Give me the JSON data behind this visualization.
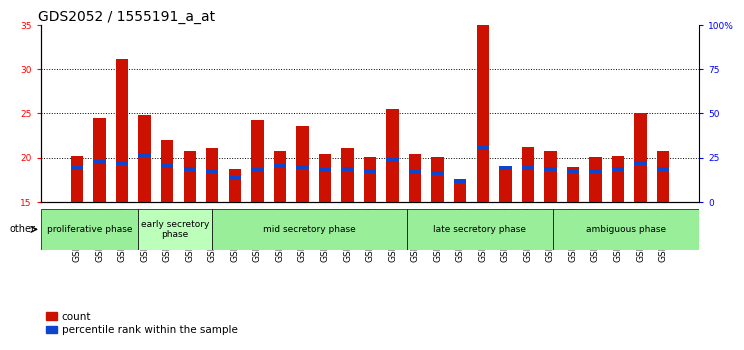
{
  "title": "GDS2052 / 1555191_a_at",
  "categories": [
    "GSM109814",
    "GSM109815",
    "GSM109816",
    "GSM109817",
    "GSM109820",
    "GSM109821",
    "GSM109822",
    "GSM109824",
    "GSM109825",
    "GSM109826",
    "GSM109827",
    "GSM109828",
    "GSM109829",
    "GSM109830",
    "GSM109831",
    "GSM109834",
    "GSM109835",
    "GSM109836",
    "GSM109837",
    "GSM109838",
    "GSM109839",
    "GSM109818",
    "GSM109819",
    "GSM109823",
    "GSM109832",
    "GSM109833",
    "GSM109840"
  ],
  "count_values": [
    20.2,
    24.5,
    31.2,
    24.8,
    22.0,
    20.8,
    21.1,
    18.7,
    24.3,
    20.8,
    23.6,
    20.4,
    21.1,
    20.1,
    25.5,
    20.4,
    20.1,
    17.1,
    35.0,
    18.6,
    21.2,
    20.7,
    19.0,
    20.1,
    20.2,
    25.0,
    20.7
  ],
  "percentile_values": [
    18.6,
    19.3,
    19.2,
    20.1,
    18.8,
    18.5,
    18.3,
    17.5,
    18.4,
    18.8,
    18.7,
    18.4,
    18.5,
    18.3,
    19.5,
    18.2,
    18.1,
    17.1,
    20.9,
    18.6,
    18.6,
    18.5,
    18.3,
    18.3,
    18.5,
    19.2,
    18.5
  ],
  "ylim_left": [
    15,
    35
  ],
  "ylim_right": [
    0,
    100
  ],
  "yticks_left": [
    15,
    20,
    25,
    30,
    35
  ],
  "yticks_right": [
    0,
    25,
    50,
    75,
    100
  ],
  "ytick_labels_right": [
    "0",
    "25",
    "50",
    "75",
    "100%"
  ],
  "bar_color_red": "#cc1100",
  "bar_color_blue": "#1144cc",
  "bar_width": 0.55,
  "blue_bar_height": 0.45,
  "phases": [
    {
      "label": "proliferative phase",
      "start": 0,
      "end": 4,
      "color": "#99ee99"
    },
    {
      "label": "early secretory\nphase",
      "start": 4,
      "end": 7,
      "color": "#bbffbb"
    },
    {
      "label": "mid secretory phase",
      "start": 7,
      "end": 15,
      "color": "#99ee99"
    },
    {
      "label": "late secretory phase",
      "start": 15,
      "end": 21,
      "color": "#99ee99"
    },
    {
      "label": "ambiguous phase",
      "start": 21,
      "end": 27,
      "color": "#99ee99"
    }
  ],
  "other_label": "other",
  "plot_bg": "#ffffff",
  "tick_bg": "#cccccc",
  "title_fontsize": 10,
  "tick_fontsize": 6.5,
  "phase_fontsize": 6.5,
  "legend_fontsize": 7.5
}
